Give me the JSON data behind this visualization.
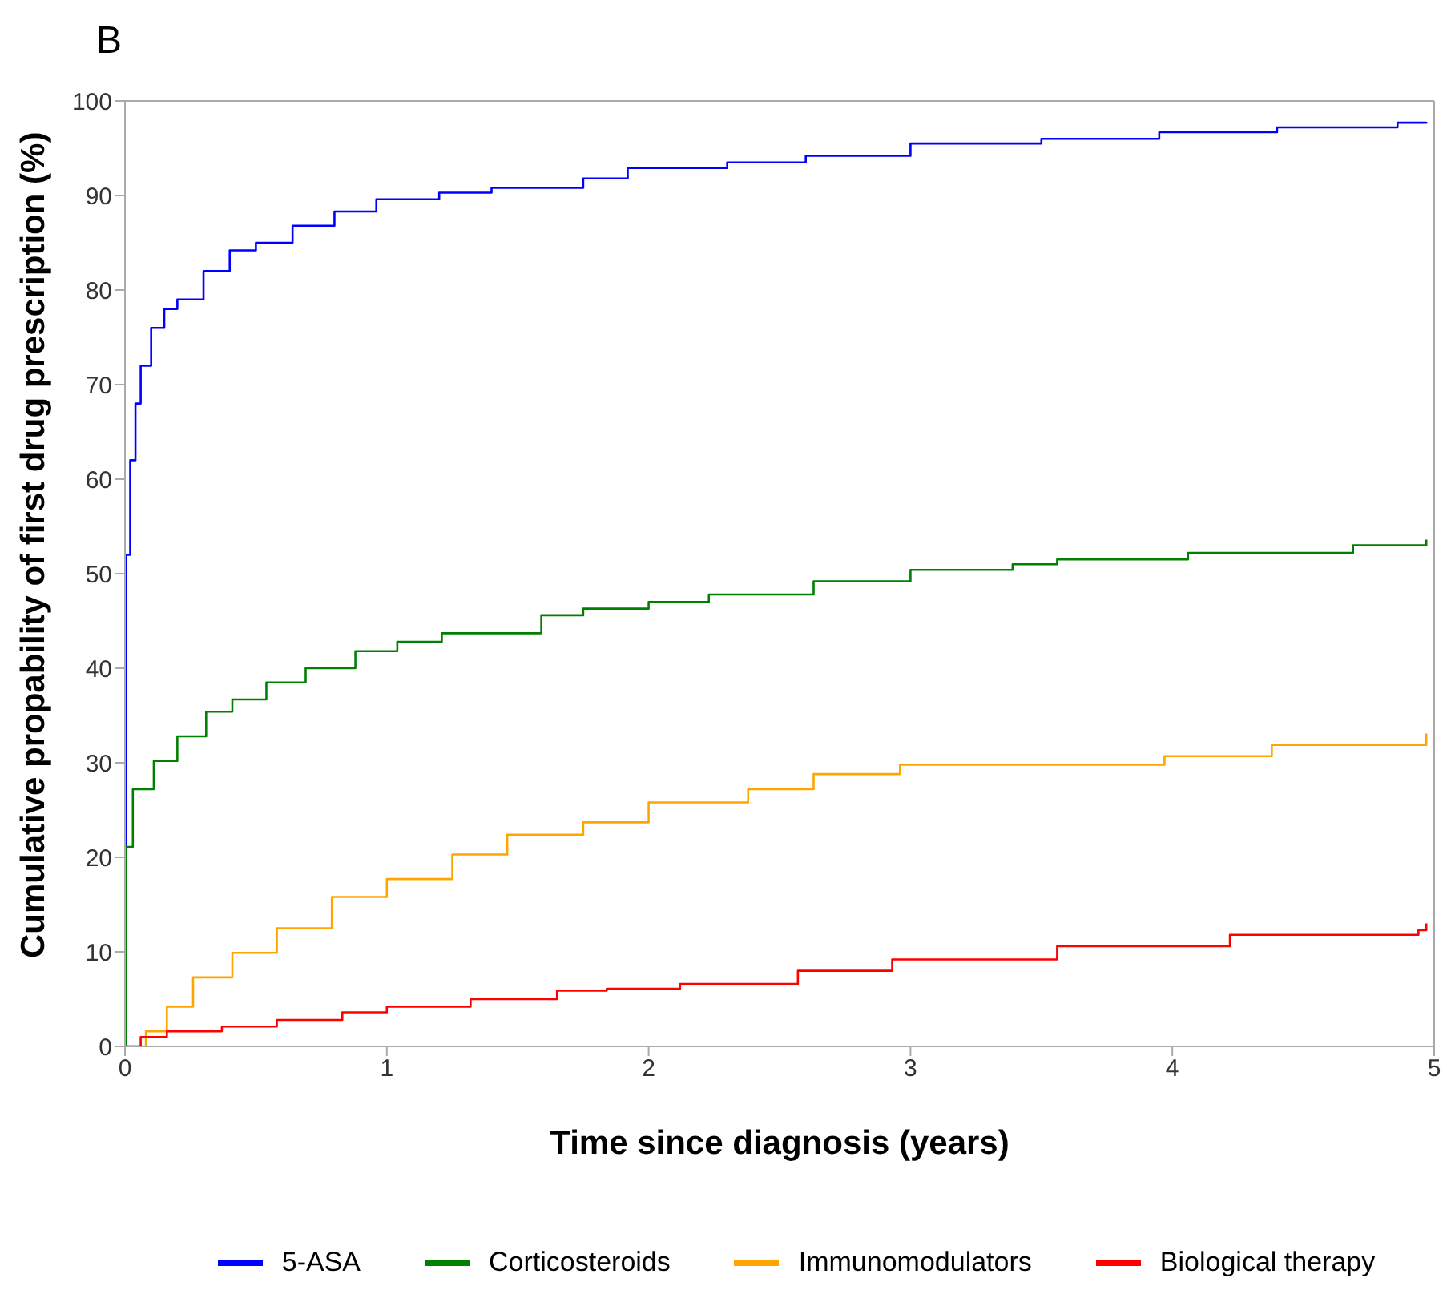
{
  "chart_data": {
    "type": "step",
    "title": "B",
    "xlabel": "Time since diagnosis (years)",
    "ylabel": "Cumulative propability of first drug prescription (%)",
    "xlim": [
      0,
      5
    ],
    "xticks": [
      0,
      1,
      2,
      3,
      4,
      5
    ],
    "ylim": [
      0,
      100
    ],
    "yticks": [
      0,
      10,
      20,
      30,
      40,
      50,
      60,
      70,
      80,
      90,
      100
    ],
    "legend": "bottom",
    "line_style": "solid",
    "series": [
      {
        "name": "5-ASA",
        "color": "#0000ff",
        "x": [
          0,
          0.005,
          0.02,
          0.04,
          0.06,
          0.1,
          0.15,
          0.2,
          0.3,
          0.4,
          0.5,
          0.64,
          0.8,
          0.96,
          1.2,
          1.4,
          1.75,
          1.92,
          2.3,
          2.6,
          3.0,
          3.5,
          3.95,
          4.4,
          4.86,
          4.97
        ],
        "values": [
          0,
          52,
          62,
          68,
          72,
          76,
          78,
          79,
          82,
          84.2,
          85,
          86.8,
          88.3,
          89.6,
          90.3,
          90.8,
          91.8,
          92.9,
          93.5,
          94.2,
          95.5,
          96,
          96.7,
          97.2,
          97.7,
          97.8
        ]
      },
      {
        "name": "Corticosteroids",
        "color": "#008000",
        "x": [
          0,
          0.005,
          0.03,
          0.11,
          0.2,
          0.31,
          0.41,
          0.54,
          0.69,
          0.88,
          1.04,
          1.21,
          1.59,
          1.75,
          2.0,
          2.23,
          2.63,
          3.0,
          3.39,
          3.56,
          4.06,
          4.69,
          4.97
        ],
        "values": [
          0,
          21.1,
          27.2,
          30.2,
          32.8,
          35.4,
          36.7,
          38.5,
          40,
          41.8,
          42.8,
          43.7,
          45.6,
          46.3,
          47,
          47.8,
          49.2,
          50.4,
          51,
          51.5,
          52.2,
          53,
          53.6
        ]
      },
      {
        "name": "Immunomodulators",
        "color": "#ffa500",
        "x": [
          0,
          0.08,
          0.16,
          0.26,
          0.41,
          0.58,
          0.79,
          1.0,
          1.25,
          1.46,
          1.75,
          2.0,
          2.38,
          2.63,
          2.96,
          3.78,
          3.97,
          4.38,
          4.97
        ],
        "values": [
          0,
          1.6,
          4.2,
          7.3,
          9.9,
          12.5,
          15.8,
          17.7,
          20.3,
          22.4,
          23.7,
          25.8,
          27.2,
          28.8,
          29.8,
          29.8,
          30.7,
          31.9,
          33.1
        ]
      },
      {
        "name": "Biological therapy",
        "color": "#ff0000",
        "x": [
          0,
          0.06,
          0.16,
          0.37,
          0.58,
          0.83,
          1.0,
          1.32,
          1.65,
          1.84,
          2.12,
          2.57,
          2.93,
          3.56,
          4.22,
          4.94,
          4.97
        ],
        "values": [
          0,
          1,
          1.6,
          2.1,
          2.8,
          3.6,
          4.2,
          5.0,
          5.9,
          6.1,
          6.6,
          8.0,
          9.2,
          10.6,
          11.8,
          12.3,
          13
        ]
      }
    ]
  }
}
